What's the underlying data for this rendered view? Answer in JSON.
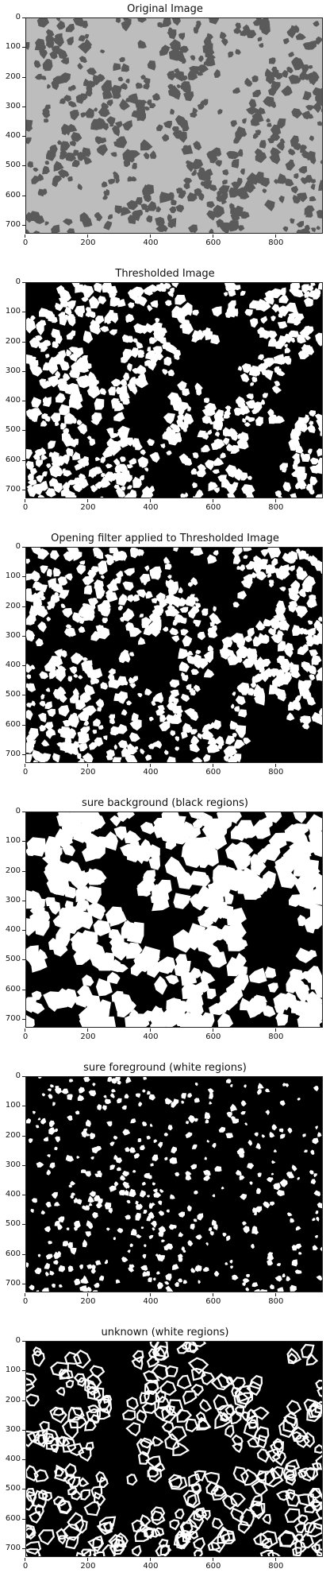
{
  "panels": [
    {
      "title": "Original Image",
      "style": "original"
    },
    {
      "title": "Thresholded Image",
      "style": "threshold"
    },
    {
      "title": "Opening filter applied to Thresholded Image",
      "style": "opening"
    },
    {
      "title": "sure background (black regions)",
      "style": "background"
    },
    {
      "title": "sure foreground (white regions)",
      "style": "foreground"
    },
    {
      "title": "unknown (white regions)",
      "style": "unknown"
    }
  ],
  "axes": {
    "y_ticks": [
      "0",
      "100",
      "200",
      "300",
      "400",
      "500",
      "600",
      "700"
    ],
    "x_ticks": [
      "0",
      "200",
      "400",
      "600",
      "800"
    ],
    "x_range": [
      0,
      950
    ],
    "y_range": [
      0,
      730
    ]
  },
  "colors": {
    "original_bg": "#bdbdbd",
    "original_grain": "#5a5a5a",
    "black": "#000000",
    "white": "#ffffff"
  }
}
